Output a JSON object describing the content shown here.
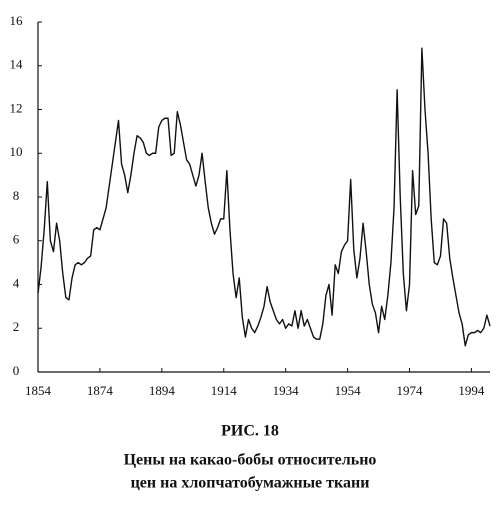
{
  "chart_data": {
    "type": "line",
    "figure_label": "РИС. 18",
    "caption": [
      "Цены на какао-бобы относительно",
      "цен на хлопчатобумажные ткани"
    ],
    "x": [
      1854,
      1855,
      1856,
      1857,
      1858,
      1859,
      1860,
      1861,
      1862,
      1863,
      1864,
      1865,
      1866,
      1867,
      1868,
      1869,
      1870,
      1871,
      1872,
      1873,
      1874,
      1875,
      1876,
      1877,
      1878,
      1879,
      1880,
      1881,
      1882,
      1883,
      1884,
      1885,
      1886,
      1887,
      1888,
      1889,
      1890,
      1891,
      1892,
      1893,
      1894,
      1895,
      1896,
      1897,
      1898,
      1899,
      1900,
      1901,
      1902,
      1903,
      1904,
      1905,
      1906,
      1907,
      1908,
      1909,
      1910,
      1911,
      1912,
      1913,
      1914,
      1915,
      1916,
      1917,
      1918,
      1919,
      1920,
      1921,
      1922,
      1923,
      1924,
      1925,
      1926,
      1927,
      1928,
      1929,
      1930,
      1931,
      1932,
      1933,
      1934,
      1935,
      1936,
      1937,
      1938,
      1939,
      1940,
      1941,
      1942,
      1943,
      1944,
      1945,
      1946,
      1947,
      1948,
      1949,
      1950,
      1951,
      1952,
      1953,
      1954,
      1955,
      1956,
      1957,
      1958,
      1959,
      1960,
      1961,
      1962,
      1963,
      1964,
      1965,
      1966,
      1967,
      1968,
      1969,
      1970,
      1971,
      1972,
      1973,
      1974,
      1975,
      1976,
      1977,
      1978,
      1979,
      1980,
      1981,
      1982,
      1983,
      1984,
      1985,
      1986,
      1987,
      1988,
      1989,
      1990,
      1991,
      1992,
      1993,
      1994,
      1995,
      1996,
      1997,
      1998,
      1999,
      2000
    ],
    "values": [
      3.6,
      4.8,
      6.5,
      8.7,
      6,
      5.5,
      6.8,
      6,
      4.5,
      3.4,
      3.3,
      4.3,
      4.9,
      5,
      4.9,
      5,
      5.2,
      5.3,
      6.5,
      6.6,
      6.5,
      7,
      7.5,
      8.5,
      9.5,
      10.5,
      11.5,
      9.5,
      9,
      8.2,
      9,
      10,
      10.8,
      10.7,
      10.5,
      10,
      9.9,
      10,
      10,
      11.2,
      11.5,
      11.6,
      11.6,
      9.9,
      10,
      11.9,
      11.3,
      10.5,
      9.7,
      9.5,
      9,
      8.5,
      9,
      10,
      8.7,
      7.5,
      6.8,
      6.3,
      6.6,
      7,
      7,
      9.2,
      6.5,
      4.5,
      3.4,
      4.3,
      2.5,
      1.6,
      2.4,
      2,
      1.8,
      2.1,
      2.5,
      3,
      3.9,
      3.2,
      2.8,
      2.4,
      2.2,
      2.4,
      2,
      2.2,
      2.1,
      2.8,
      2,
      2.8,
      2.1,
      2.4,
      2,
      1.6,
      1.5,
      1.5,
      2.2,
      3.5,
      4,
      2.6,
      4.9,
      4.5,
      5.5,
      5.8,
      6,
      8.8,
      5.6,
      4.3,
      5.2,
      6.8,
      5.5,
      4,
      3.1,
      2.7,
      1.8,
      3,
      2.4,
      3.5,
      5,
      7.5,
      12.9,
      8,
      4.5,
      2.8,
      4,
      9.2,
      7.2,
      7.6,
      14.8,
      12,
      10,
      7,
      5,
      4.9,
      5.3,
      7,
      6.8,
      5.2,
      4.3,
      3.5,
      2.7,
      2.2,
      1.2,
      1.7,
      1.8,
      1.8,
      1.9,
      1.8,
      2,
      2.6,
      2.1
    ],
    "color": "#111111",
    "xlim": [
      1854,
      2000
    ],
    "xticks": [
      1854,
      1874,
      1894,
      1914,
      1934,
      1954,
      1974,
      1994
    ],
    "ylim": [
      0,
      16
    ],
    "yticks": [
      0,
      2,
      4,
      6,
      8,
      10,
      12,
      14,
      16
    ]
  }
}
